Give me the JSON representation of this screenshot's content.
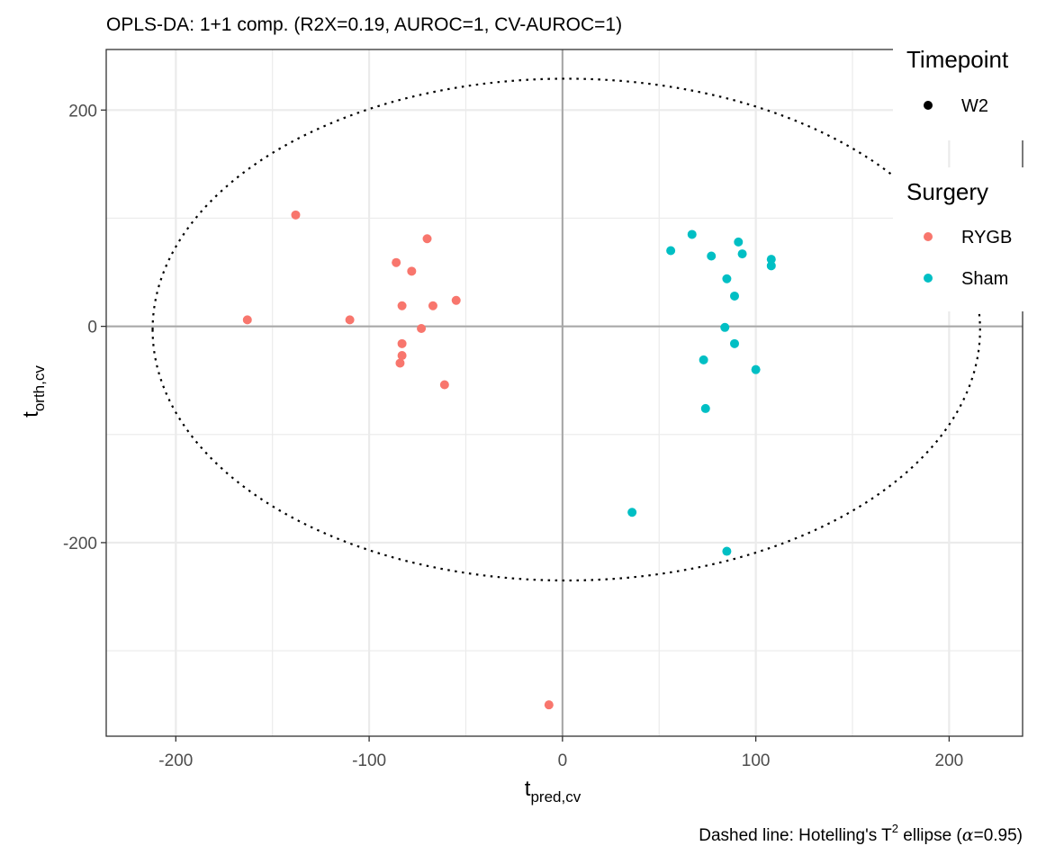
{
  "chart_data": {
    "type": "scatter",
    "title": "OPLS-DA: 1+1 comp. (R2X=0.19, AUROC=1, CV-AUROC=1)",
    "caption_prefix": "Dashed line: Hotelling's T",
    "caption_sup": "2",
    "caption_mid": " ellipse (",
    "caption_alpha": "α",
    "caption_end": "=0.95)",
    "xlabel": {
      "main": "t",
      "sub": "pred,cv"
    },
    "ylabel": {
      "main": "t",
      "sub": "orth,cv"
    },
    "xlim": [
      -236,
      238
    ],
    "ylim": [
      -379,
      256
    ],
    "x_ticks": [
      -200,
      -100,
      0,
      100,
      200
    ],
    "x_tick_labels": [
      "-200",
      "-100",
      "0",
      "100",
      "200"
    ],
    "y_ticks": [
      -200,
      0,
      200
    ],
    "y_tick_labels": [
      "-200",
      "0",
      "200"
    ],
    "grid": true,
    "reference_lines": {
      "x": 0,
      "y": 0
    },
    "ellipse": {
      "center": [
        2,
        -3
      ],
      "rx": 214,
      "ry": 232,
      "style": "dotted"
    },
    "legend_position": "right",
    "legends": [
      {
        "title": "Timepoint",
        "entries": [
          {
            "label": "W2",
            "color": "#000000"
          }
        ]
      },
      {
        "title": "Surgery",
        "entries": [
          {
            "label": "RYGB",
            "color": "#F8766D"
          },
          {
            "label": "Sham",
            "color": "#00BFC4"
          }
        ]
      }
    ],
    "series": [
      {
        "name": "RYGB",
        "color": "#F8766D",
        "points": [
          [
            -163,
            6
          ],
          [
            -138,
            103
          ],
          [
            -110,
            6
          ],
          [
            -86,
            59
          ],
          [
            -78,
            51
          ],
          [
            -70,
            81
          ],
          [
            -83,
            19
          ],
          [
            -67,
            19
          ],
          [
            -55,
            24
          ],
          [
            -73,
            -2
          ],
          [
            -83,
            -16
          ],
          [
            -83,
            -27
          ],
          [
            -84,
            -34
          ],
          [
            -61,
            -54
          ],
          [
            -7,
            -350
          ]
        ]
      },
      {
        "name": "Sham",
        "color": "#00BFC4",
        "points": [
          [
            67,
            85
          ],
          [
            56,
            70
          ],
          [
            77,
            65
          ],
          [
            91,
            78
          ],
          [
            93,
            67
          ],
          [
            108,
            62
          ],
          [
            108,
            56
          ],
          [
            85,
            44
          ],
          [
            89,
            28
          ],
          [
            84,
            -1
          ],
          [
            89,
            -16
          ],
          [
            73,
            -31
          ],
          [
            100,
            -40
          ],
          [
            74,
            -76
          ],
          [
            36,
            -172
          ],
          [
            85,
            -208
          ]
        ]
      }
    ]
  }
}
